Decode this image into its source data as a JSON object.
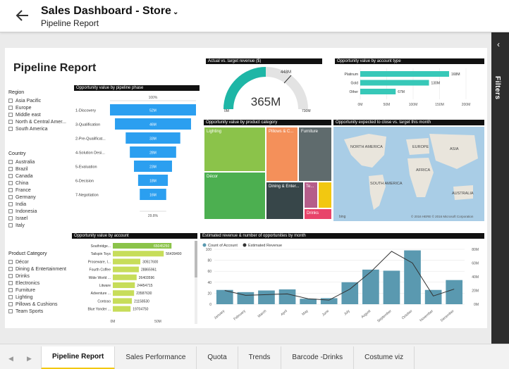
{
  "header": {
    "title": "Sales Dashboard - Store",
    "caret": "⌄",
    "subtitle": "Pipeline Report"
  },
  "report": {
    "title": "Pipeline Report"
  },
  "filters": {
    "label": "Filters",
    "chevron": "‹"
  },
  "slicers": {
    "region": {
      "title": "Region",
      "items": [
        "Asia Pacific",
        "Europe",
        "Middle east",
        "North & Central Amer...",
        "South America"
      ]
    },
    "country": {
      "title": "Country",
      "items": [
        "Australia",
        "Brazil",
        "Canada",
        "China",
        "France",
        "Germany",
        "India",
        "Indonesia",
        "Israel",
        "Italy"
      ]
    },
    "product_category": {
      "title": "Product Category",
      "items": [
        "Décor",
        "Dining & Entertainment",
        "Drinks",
        "Electronics",
        "Furniture",
        "Lighting",
        "Pillows & Cushions",
        "Team Sports"
      ]
    }
  },
  "visuals": {
    "funnel": {
      "title": "Opportunity value by pipeline phase",
      "top_pct": "100%",
      "bottom_pct": "29.8%"
    },
    "gauge": {
      "title": "Actual vs. target  revenue ($)",
      "value": "365M",
      "min": "0M",
      "max": "730M",
      "target": "448M"
    },
    "account_type": {
      "title": "Opportunity value by account type"
    },
    "treemap": {
      "title": "Opportunity value by product category"
    },
    "map": {
      "title": "Opportunity expected to close vs. target this month",
      "labels": [
        "NORTH AMERICA",
        "EUROPE",
        "ASIA",
        "AFRICA",
        "SOUTH AMERICA",
        "AUSTRALIA"
      ],
      "credit": "© 2016 HERE   © 2016 Microsoft Corporation",
      "brand": "bing"
    },
    "account": {
      "title": "Opportunity value by account"
    },
    "combo": {
      "title": "Estimated revenue & number of opportunities by month",
      "legend": [
        "Count of Account",
        "Estimated Revenue"
      ]
    }
  },
  "tabs": [
    "Pipeline Report",
    "Sales Performance",
    "Quota",
    "Trends",
    "Barcode -Drinks",
    "Costume viz"
  ],
  "nav": {
    "prev": "◀",
    "next": "▶"
  },
  "colors": {
    "accent": "#f2c811",
    "funnel": "#2b9ff0",
    "teal": "#37c8b8",
    "green": "#8bc34a",
    "bar": "#5a99b0"
  },
  "chart_data": [
    {
      "type": "bar",
      "title": "Opportunity value by pipeline phase",
      "categories": [
        "1-Discovery",
        "3-Qualification",
        "2-Pre-Qualificat...",
        "4-Solution Desi...",
        "5-Evaluation",
        "6-Decision",
        "7-Negotiation"
      ],
      "values": [
        52,
        46,
        33,
        28,
        23,
        18,
        16
      ],
      "value_labels": [
        "52M",
        "46M",
        "33M",
        "28M",
        "23M",
        "18M",
        "16M"
      ]
    },
    {
      "type": "bar",
      "title": "Opportunity value by account type",
      "categories": [
        "Platinum",
        "Gold",
        "Other"
      ],
      "values": [
        168,
        130,
        67
      ],
      "value_labels": [
        "168M",
        "130M",
        "67M"
      ],
      "xlim": [
        0,
        200
      ],
      "ticks": [
        "0M",
        "50M",
        "100M",
        "150M",
        "200M"
      ]
    },
    {
      "type": "heatmap",
      "title": "Opportunity value by product category",
      "categories": [
        "Lighting",
        "Pillows & C...",
        "Furniture",
        "Décor",
        "Dining & Enter...",
        "Te...",
        "Drinks"
      ]
    },
    {
      "type": "bar",
      "title": "Opportunity value by account",
      "categories": [
        "Southridge...",
        "Tailspin Toys",
        "Proseware, I...",
        "Fourth Coffee",
        "Wide World ...",
        "Litware",
        "Adventure ...",
        "Contoso",
        "Blue Yonder ..."
      ],
      "values": [
        65045250,
        56439490,
        30517600,
        28865961,
        26403596,
        24454715,
        23587630,
        21158530,
        19704750
      ],
      "value_labels": [
        "65045250",
        "56439490",
        "30517600",
        "28865961",
        "26403596",
        "24454715",
        "23587630",
        "21158530",
        "19704750"
      ],
      "xlim": [
        0,
        50000000
      ],
      "ticks": [
        "0M",
        "50M"
      ]
    },
    {
      "type": "bar",
      "title": "Estimated revenue & number of opportunities by month",
      "categories": [
        "January",
        "February",
        "March",
        "April",
        "May",
        "June",
        "July",
        "August",
        "September",
        "October",
        "November",
        "December"
      ],
      "series": [
        {
          "name": "Count of Account",
          "type": "bar",
          "values": [
            26,
            22,
            25,
            27,
            10,
            11,
            40,
            63,
            61,
            98,
            26,
            44
          ]
        },
        {
          "name": "Estimated Revenue",
          "type": "line",
          "values": [
            20,
            13,
            14,
            15,
            8,
            6,
            22,
            47,
            77,
            60,
            12,
            22
          ]
        }
      ],
      "ylim_left": [
        0,
        100
      ],
      "ylim_right": [
        0,
        80
      ],
      "ticks_left": [
        "0",
        "20",
        "40",
        "60",
        "80",
        "100"
      ],
      "ticks_right": [
        "0M",
        "20M",
        "40M",
        "60M",
        "80M"
      ]
    }
  ]
}
